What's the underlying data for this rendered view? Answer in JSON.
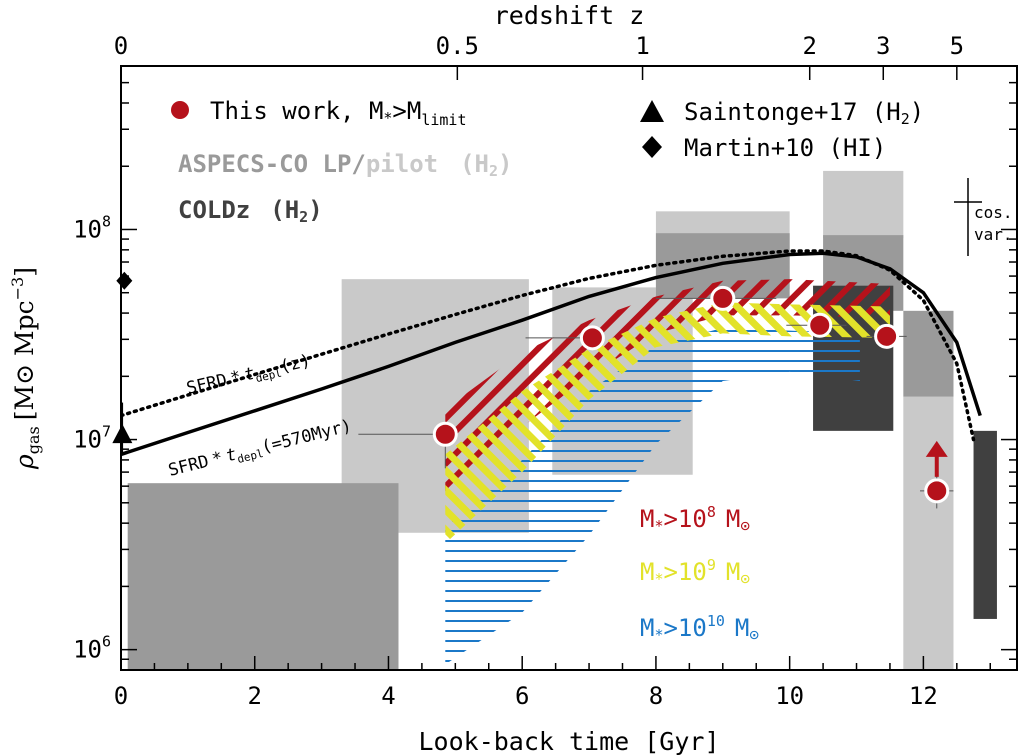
{
  "chart_data": {
    "type": "scatter",
    "xlabel": "Look-back time [Gyr]",
    "ylabel": "ρ_gas [M⊙ Mpc⁻³]",
    "ylabel_parts": {
      "sym": "ρ",
      "sub": "gas",
      "unit": "[M",
      "odot": "⊙",
      "mpc": " Mpc",
      "sup": "−3",
      "close": "]"
    },
    "top_axis_label": "redshift z",
    "xlim": [
      0,
      13.4
    ],
    "ylim": [
      800000,
      600000000
    ],
    "yscale": "log",
    "x_ticks": [
      0,
      2,
      4,
      6,
      8,
      10,
      12
    ],
    "x_tick_labels": [
      "0",
      "2",
      "4",
      "6",
      "8",
      "10",
      "12"
    ],
    "y_ticks": [
      1000000,
      10000000,
      100000000
    ],
    "y_tick_labels": [
      {
        "base": "10",
        "exp": "6"
      },
      {
        "base": "10",
        "exp": "7"
      },
      {
        "base": "10",
        "exp": "8"
      }
    ],
    "top_ticks": [
      {
        "label": "0",
        "lookback_gyr": 0.0
      },
      {
        "label": "0.5",
        "lookback_gyr": 5.03
      },
      {
        "label": "1",
        "lookback_gyr": 7.8
      },
      {
        "label": "2",
        "lookback_gyr": 10.3
      },
      {
        "label": "3",
        "lookback_gyr": 11.4
      },
      {
        "label": "5",
        "lookback_gyr": 12.5
      }
    ],
    "colors": {
      "red": "#b5121b",
      "yellow": "#e2e22a",
      "blue": "#1b78c8",
      "light_gray": "#c9c9c9",
      "mid_gray": "#9a9a9a",
      "dark_gray": "#404040"
    },
    "boxes_light": [
      {
        "x": [
          3.3,
          6.1
        ],
        "y": [
          3600000,
          58000000
        ]
      },
      {
        "x": [
          6.45,
          8.55
        ],
        "y": [
          6800000,
          53000000
        ]
      },
      {
        "x": [
          8.0,
          10.0
        ],
        "y": [
          52000000,
          122000000
        ]
      },
      {
        "x": [
          10.5,
          11.7
        ],
        "y": [
          91000000,
          190000000
        ]
      },
      {
        "x": [
          11.7,
          12.45
        ],
        "y": [
          800000,
          16000000
        ]
      }
    ],
    "boxes_mid": [
      {
        "x": [
          0.1,
          4.15
        ],
        "y": [
          800000,
          6200000
        ]
      },
      {
        "x": [
          8.0,
          10.0
        ],
        "y": [
          47000000,
          96000000
        ]
      },
      {
        "x": [
          10.5,
          11.7
        ],
        "y": [
          41000000,
          94000000
        ]
      },
      {
        "x": [
          11.7,
          12.45
        ],
        "y": [
          16000000,
          41000000
        ]
      }
    ],
    "boxes_dark": [
      {
        "x": [
          10.35,
          11.55
        ],
        "y": [
          11000000,
          54000000
        ]
      },
      {
        "x": [
          12.75,
          13.1
        ],
        "y": [
          1400000,
          11000000
        ]
      }
    ],
    "bands": {
      "red": {
        "upper": [
          [
            4.85,
            14000000
          ],
          [
            6.0,
            26000000
          ],
          [
            7.0,
            37000000
          ],
          [
            8.0,
            48000000
          ],
          [
            9.0,
            57000000
          ],
          [
            10.0,
            58000000
          ],
          [
            11.5,
            55000000
          ]
        ],
        "lower": [
          [
            4.85,
            5000000
          ],
          [
            6.0,
            11500000
          ],
          [
            7.0,
            20000000
          ],
          [
            8.0,
            32000000
          ],
          [
            9.0,
            39000000
          ],
          [
            10.0,
            39000000
          ],
          [
            11.5,
            38000000
          ]
        ]
      },
      "yellow": {
        "upper": [
          [
            4.85,
            8500000
          ],
          [
            6.0,
            17000000
          ],
          [
            7.0,
            27000000
          ],
          [
            8.0,
            38000000
          ],
          [
            9.0,
            45000000
          ],
          [
            10.0,
            44000000
          ],
          [
            11.5,
            43000000
          ]
        ],
        "lower": [
          [
            4.85,
            3200000
          ],
          [
            6.0,
            7000000
          ],
          [
            7.0,
            15500000
          ],
          [
            8.0,
            27500000
          ],
          [
            9.0,
            32000000
          ],
          [
            10.0,
            31000000
          ],
          [
            11.5,
            30500000
          ]
        ]
      },
      "blue": {
        "upper": [
          [
            4.85,
            3800000
          ],
          [
            6.0,
            8000000
          ],
          [
            7.0,
            17000000
          ],
          [
            8.0,
            28000000
          ],
          [
            9.0,
            34000000
          ],
          [
            10.0,
            33000000
          ],
          [
            11.05,
            32000000
          ]
        ],
        "lower": [
          [
            4.85,
            850000
          ],
          [
            6.0,
            1500000
          ],
          [
            7.0,
            3500000
          ],
          [
            8.0,
            9500000
          ],
          [
            9.0,
            19000000
          ],
          [
            10.0,
            21000000
          ],
          [
            11.05,
            19000000
          ]
        ]
      }
    },
    "curves": [
      {
        "name": "SFRD * t_depl(=570Myr)",
        "style": "solid",
        "points": [
          [
            0,
            8500000
          ],
          [
            1,
            10800000
          ],
          [
            2,
            13700000
          ],
          [
            3,
            17400000
          ],
          [
            4,
            22300000
          ],
          [
            5,
            29000000
          ],
          [
            6,
            37000000
          ],
          [
            7,
            48000000
          ],
          [
            8,
            59000000
          ],
          [
            9,
            69000000
          ],
          [
            10,
            76000000
          ],
          [
            10.5,
            77000000
          ],
          [
            11,
            74000000
          ],
          [
            11.5,
            65000000
          ],
          [
            12,
            50000000
          ],
          [
            12.5,
            29000000
          ],
          [
            12.85,
            13000000
          ]
        ]
      },
      {
        "name": "SFRD * t_depl(z)",
        "style": "dotted",
        "points": [
          [
            0,
            13000000
          ],
          [
            1,
            16300000
          ],
          [
            2,
            20400000
          ],
          [
            3,
            25500000
          ],
          [
            4,
            31800000
          ],
          [
            5,
            39400000
          ],
          [
            6,
            48500000
          ],
          [
            7,
            58500000
          ],
          [
            8,
            67500000
          ],
          [
            9,
            74500000
          ],
          [
            10,
            79000000
          ],
          [
            10.5,
            79000000
          ],
          [
            11,
            75000000
          ],
          [
            11.5,
            64000000
          ],
          [
            12,
            46000000
          ],
          [
            12.5,
            23000000
          ],
          [
            12.75,
            10000000
          ]
        ]
      }
    ],
    "curve_labels": [
      {
        "prefix": "SFRD",
        "op": "*",
        "t": "t",
        "sub": "depl",
        "suffix": "(z)"
      },
      {
        "prefix": "SFRD",
        "op": "*",
        "t": "t",
        "sub": "depl",
        "suffix": "(=570Myr)"
      }
    ],
    "this_work": [
      {
        "x": 4.85,
        "y": 10600000,
        "xerr": [
          1.3,
          0.0
        ],
        "yerr": [
          3300000,
          0
        ]
      },
      {
        "x": 7.05,
        "y": 30500000,
        "xerr": [
          1.0,
          0.0
        ],
        "yerr": [
          0,
          0
        ]
      },
      {
        "x": 9.0,
        "y": 47000000,
        "xerr": [
          1.0,
          0.8
        ],
        "yerr": [
          0,
          0
        ]
      },
      {
        "x": 10.45,
        "y": 35000000,
        "xerr": [
          0.5,
          0.4
        ],
        "yerr": [
          0,
          0
        ]
      },
      {
        "x": 11.45,
        "y": 31000000,
        "xerr": [
          0.3,
          0.3
        ],
        "yerr": [
          0,
          0
        ]
      },
      {
        "x": 12.2,
        "y": 5700000,
        "xerr": [
          0.25,
          0.25
        ],
        "yerr": [
          1000000,
          1000000
        ],
        "lower_limit": true
      }
    ],
    "saintonge17": {
      "x": 0.02,
      "y": 10500000,
      "yerr": [
        2000000,
        4500000
      ]
    },
    "martin10": {
      "x": 0.05,
      "y": 57000000
    },
    "cos_var": {
      "x": 12.65,
      "y": 110000000,
      "label1": "cos.",
      "label2": "var."
    },
    "legend": {
      "this_work": {
        "text": "This work, M",
        "sub1": "*",
        "mid": ">M",
        "sub2": "limit"
      },
      "saintonge": {
        "text": "Saintonge+17 (H",
        "sub": "2",
        "tail": ")"
      },
      "martin": {
        "text": "Martin+10 (HI)"
      },
      "aspecs_lp": "ASPECS-CO LP/",
      "aspecs_pilot": "pilot",
      "aspecs_h2": {
        "text": "(H",
        "sub": "2",
        "tail": ")"
      },
      "coldz": "COLDz",
      "coldz_h2": {
        "text": "(H",
        "sub": "2",
        "tail": ")"
      }
    },
    "mass_labels": [
      {
        "color": "red",
        "m": "M",
        "sub": "*",
        "gt": ">10",
        "sup": "8",
        "unit": "M",
        "odot": "⊙"
      },
      {
        "color": "yellow",
        "m": "M",
        "sub": "*",
        "gt": ">10",
        "sup": "9",
        "unit": "M",
        "odot": "⊙"
      },
      {
        "color": "blue",
        "m": "M",
        "sub": "*",
        "gt": ">10",
        "sup": "10",
        "unit": "M",
        "odot": "⊙"
      }
    ]
  }
}
